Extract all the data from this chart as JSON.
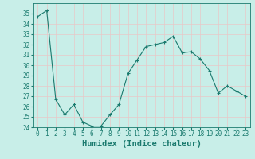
{
  "x": [
    0,
    1,
    2,
    3,
    4,
    5,
    6,
    7,
    8,
    9,
    10,
    11,
    12,
    13,
    14,
    15,
    16,
    17,
    18,
    19,
    20,
    21,
    22,
    23
  ],
  "y": [
    34.7,
    35.3,
    26.7,
    25.2,
    26.2,
    24.5,
    24.1,
    24.1,
    25.2,
    26.2,
    29.2,
    30.5,
    31.8,
    32.0,
    32.2,
    32.8,
    31.2,
    31.3,
    30.6,
    29.5,
    27.3,
    28.0,
    27.5,
    27.0
  ],
  "line_color": "#1a7a6e",
  "marker": "+",
  "marker_color": "#1a7a6e",
  "bg_color": "#c8eee8",
  "grid_color": "#aadddd",
  "axis_label_color": "#1a7a6e",
  "xlabel": "Humidex (Indice chaleur)",
  "ylim": [
    24,
    36
  ],
  "yticks": [
    24,
    25,
    26,
    27,
    28,
    29,
    30,
    31,
    32,
    33,
    34,
    35
  ],
  "xlim": [
    -0.5,
    23.5
  ],
  "xticks": [
    0,
    1,
    2,
    3,
    4,
    5,
    6,
    7,
    8,
    9,
    10,
    11,
    12,
    13,
    14,
    15,
    16,
    17,
    18,
    19,
    20,
    21,
    22,
    23
  ],
  "tick_fontsize": 5.5,
  "label_fontsize": 7.5
}
